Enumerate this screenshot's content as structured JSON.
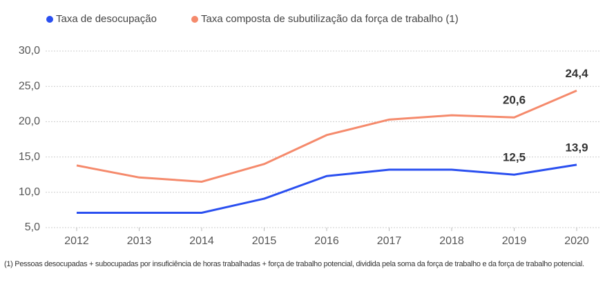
{
  "chart_data": {
    "type": "line",
    "categories": [
      "2012",
      "2013",
      "2014",
      "2015",
      "2016",
      "2017",
      "2018",
      "2019",
      "2020"
    ],
    "series": [
      {
        "name": "Taxa de desocupação",
        "color": "#2a4ff0",
        "values": [
          7.1,
          7.1,
          7.1,
          9.1,
          12.3,
          13.2,
          13.2,
          12.5,
          13.9
        ],
        "value_labels": [
          null,
          null,
          null,
          null,
          null,
          null,
          null,
          "12,5",
          "13,9"
        ]
      },
      {
        "name": "Taxa composta de subutilização da força de trabalho (1)",
        "color": "#f58a6c",
        "values": [
          13.8,
          12.1,
          11.5,
          14.0,
          18.1,
          20.3,
          20.9,
          20.6,
          24.4
        ],
        "value_labels": [
          null,
          null,
          null,
          null,
          null,
          null,
          null,
          "20,6",
          "24,4"
        ]
      }
    ],
    "ylim": [
      5,
      30
    ],
    "yticks": [
      {
        "value": 5,
        "label": "5,0"
      },
      {
        "value": 10,
        "label": "10,0"
      },
      {
        "value": 15,
        "label": "15,0"
      },
      {
        "value": 20,
        "label": "20,0"
      },
      {
        "value": 25,
        "label": "25,0"
      },
      {
        "value": 30,
        "label": "30,0"
      }
    ],
    "grid": true,
    "footnote": "(1) Pessoas desocupadas + subocupadas por insuficiência de horas trabalhadas + força de trabalho potencial, dividida pela soma da força de trabalho e da força de trabalho potencial."
  }
}
